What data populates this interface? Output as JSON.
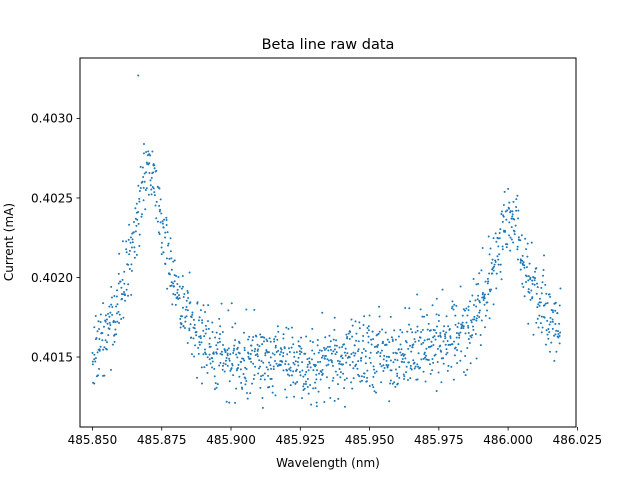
{
  "chart_data": {
    "type": "scatter",
    "title": "Beta line raw data",
    "xlabel": "Wavelength (nm)",
    "ylabel": "Current (mA)",
    "xlim": [
      485.8455,
      486.0245
    ],
    "ylim": [
      0.40106,
      0.40338
    ],
    "xticks": [
      485.85,
      485.875,
      485.9,
      485.925,
      485.95,
      485.975,
      486.0,
      486.025
    ],
    "xtick_labels": [
      "485.850",
      "485.875",
      "485.900",
      "485.925",
      "485.950",
      "485.975",
      "486.000",
      "486.025"
    ],
    "yticks": [
      0.4015,
      0.402,
      0.4025,
      0.403
    ],
    "ytick_labels": [
      "0.4015",
      "0.4020",
      "0.4025",
      "0.4030"
    ],
    "grid": false,
    "marker_color": "#1f77b4",
    "series": [
      {
        "n_points": 1400,
        "x_range": [
          485.85,
          486.019
        ],
        "model": "sum of two Lorentzian peaks on a rising baseline",
        "baseline": {
          "x": [
            485.85,
            485.925,
            485.975,
            486.019
          ],
          "y": [
            0.4014,
            0.40143,
            0.40152,
            0.40158
          ]
        },
        "peaks": [
          {
            "center": 485.8705,
            "amplitude": 0.00125,
            "width": 0.008
          },
          {
            "center": 486.0005,
            "amplitude": 0.0008,
            "width": 0.0075
          }
        ],
        "noise_sd": 0.00012,
        "observed_max": {
          "x": 485.8665,
          "y": 0.40327
        },
        "observed_min": {
          "x": 485.9115,
          "y": 0.40118
        }
      }
    ]
  }
}
